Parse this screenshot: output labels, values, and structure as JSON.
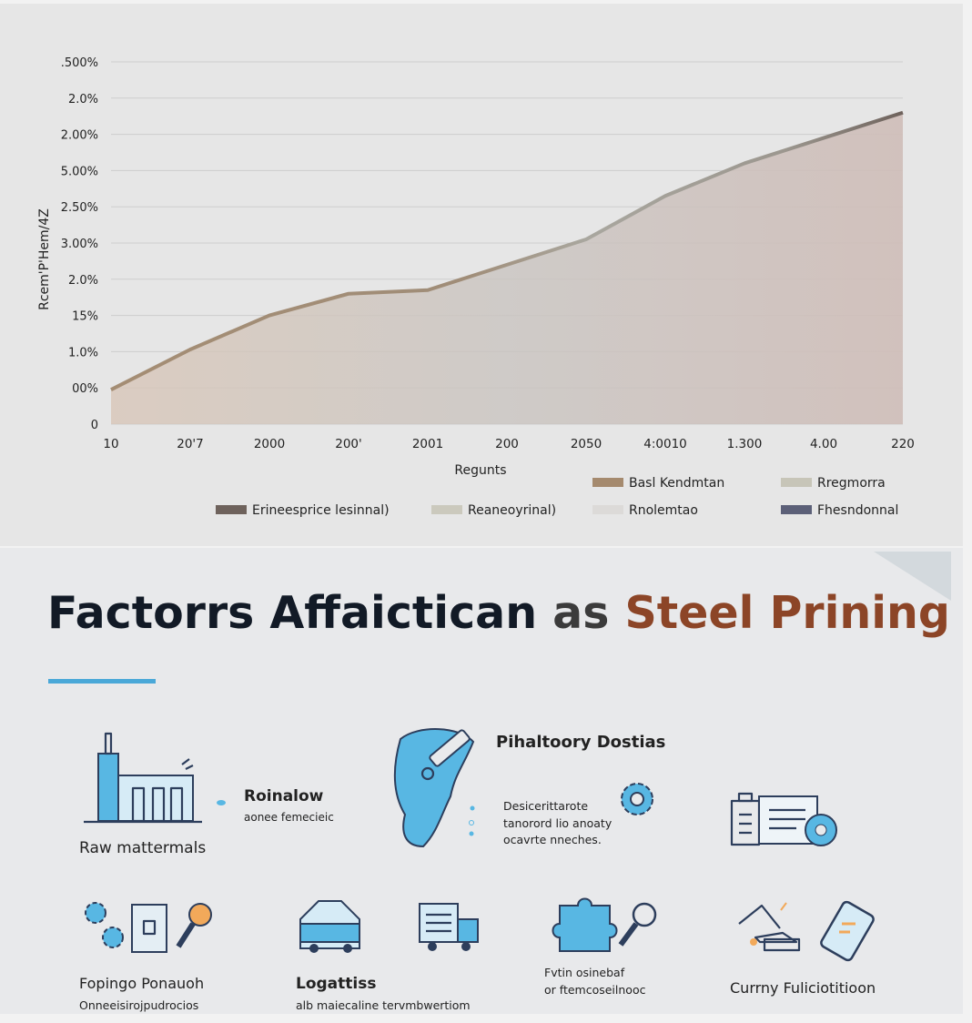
{
  "chart_data": {
    "type": "area",
    "ylabel": "Rcem'P'Hem/4Z",
    "xlabel": "Regunts",
    "categories": [
      "10",
      "20'7",
      "2000",
      "200'",
      "2001",
      "200",
      "2050",
      "4:0010",
      "1.300",
      "4.00",
      "220"
    ],
    "series": [
      {
        "values": [
          0.95,
          2.06,
          3.0,
          3.6,
          3.7,
          4.4,
          5.1,
          6.3,
          7.2,
          7.9,
          8.6
        ]
      }
    ],
    "ylim": [
      0,
      10
    ],
    "yticks": [
      0,
      {
        "value": 1,
        "label": "00%"
      },
      {
        "value": 2,
        "label": "1.0%"
      },
      {
        "value": 3,
        "label": "15%"
      },
      {
        "value": 4,
        "label": "2.0%"
      },
      {
        "value": 5,
        "label": "3.00%"
      },
      {
        "value": 6,
        "label": "2.50%"
      },
      {
        "value": 7,
        "label": "5.00%"
      },
      {
        "value": 8,
        "label": "2.00%"
      },
      {
        "value": 9,
        "label": "2.0%"
      },
      {
        "value": 10,
        "label": ".500%"
      }
    ],
    "grid": true,
    "legend": [
      {
        "name": "Basl Kendmtan",
        "color": "#a58a6e"
      },
      {
        "name": "Rregmorra",
        "color": "#c7c5b8"
      },
      {
        "name": "Erineesprice lesinnal)",
        "color": "#6e625c"
      },
      {
        "name": "Reaneoyrinal)",
        "color": "#cbc9bd"
      },
      {
        "name": "Rnolemtao",
        "color": "#dcdad8"
      },
      {
        "name": "Fhesndonnal",
        "color": "#5c6078"
      }
    ]
  },
  "infographic": {
    "title": [
      "Factorrs Affaictican",
      "as",
      "Steel Prining"
    ],
    "factors": [
      {
        "heading": "Roinalow",
        "text": [
          "aonee femecieic"
        ],
        "caption": "Raw mattermals"
      },
      {
        "heading": "Pihaltoory Dostias",
        "text": [
          "Desicerittarote",
          "tanorord lio anoaty",
          "ocavrte nneches."
        ]
      },
      {
        "heading": "Fopingo Ponauoh",
        "text": [
          "Onneeisirojpudrocios"
        ]
      },
      {
        "heading": "Logattiss",
        "text": [
          "alb maiecaline tervmbwertiom"
        ]
      },
      {
        "text": [
          "Fvtin osinebaf",
          "or ftemcoseilnooc"
        ]
      },
      {
        "heading": "Currny Fuliciotitioon"
      }
    ]
  }
}
